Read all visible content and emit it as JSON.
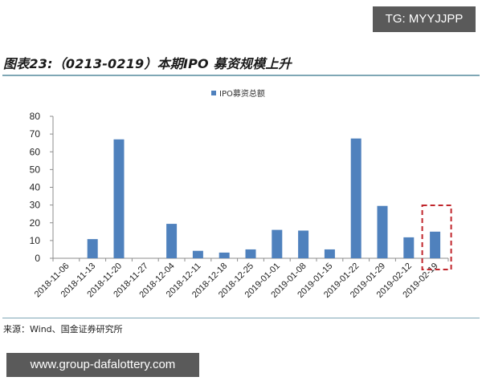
{
  "watermark_top": "TG: MYYJJPP",
  "title": "图表23:（0213-0219）本期IPO 募资规模上升",
  "legend": {
    "label": "IPO募资总额",
    "color": "#4f81bd"
  },
  "source": "来源：Wind、国金证券研究所",
  "watermark_bottom": "www.group-dafalottery.com",
  "highlight": {
    "category": "2019-02-19",
    "color": "#c0262c",
    "style": "dashed"
  },
  "chart_data": {
    "type": "bar",
    "title": "图表23:（0213-0219）本期IPO 募资规模上升",
    "xlabel": "",
    "ylabel": "",
    "ylim": [
      0,
      80
    ],
    "yticks": [
      0,
      10,
      20,
      30,
      40,
      50,
      60,
      70,
      80
    ],
    "grid": false,
    "legend_position": "top",
    "categories": [
      "2018-11-06",
      "2018-11-13",
      "2018-11-20",
      "2018-11-27",
      "2018-12-04",
      "2018-12-11",
      "2018-12-18",
      "2018-12-25",
      "2019-01-01",
      "2019-01-08",
      "2019-01-15",
      "2019-01-22",
      "2019-01-29",
      "2019-02-12",
      "2019-02-19"
    ],
    "series": [
      {
        "name": "IPO募资总额",
        "color": "#4f81bd",
        "values": [
          0,
          10.8,
          67,
          0,
          19.4,
          4.2,
          3.2,
          5,
          16,
          15.6,
          5,
          67.5,
          29.5,
          11.8,
          15
        ]
      }
    ],
    "annotations": [
      {
        "type": "dashed-box",
        "target": "2019-02-19",
        "color": "#c0262c"
      }
    ]
  }
}
